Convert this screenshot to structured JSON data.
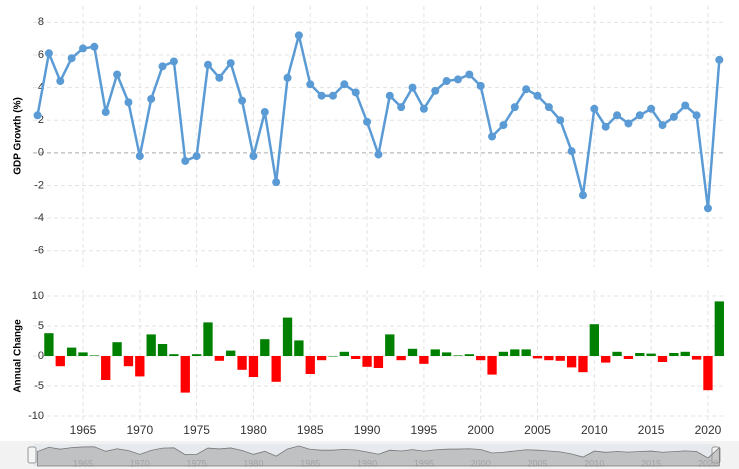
{
  "chart_data": [
    {
      "type": "line",
      "y_label": "GDP Growth (%)",
      "color": "#5b9bd5",
      "grid": true,
      "x": [
        1961,
        1962,
        1963,
        1964,
        1965,
        1966,
        1967,
        1968,
        1969,
        1970,
        1971,
        1972,
        1973,
        1974,
        1975,
        1976,
        1977,
        1978,
        1979,
        1980,
        1981,
        1982,
        1983,
        1984,
        1985,
        1986,
        1987,
        1988,
        1989,
        1990,
        1991,
        1992,
        1993,
        1994,
        1995,
        1996,
        1997,
        1998,
        1999,
        2000,
        2001,
        2002,
        2003,
        2004,
        2005,
        2006,
        2007,
        2008,
        2009,
        2010,
        2011,
        2012,
        2013,
        2014,
        2015,
        2016,
        2017,
        2018,
        2019,
        2020,
        2021
      ],
      "values": [
        2.3,
        6.1,
        4.4,
        5.8,
        6.4,
        6.5,
        2.5,
        4.8,
        3.1,
        -0.2,
        3.3,
        5.3,
        5.6,
        -0.5,
        -0.2,
        5.4,
        4.6,
        5.5,
        3.2,
        -0.2,
        2.5,
        -1.8,
        4.6,
        7.2,
        4.2,
        3.5,
        3.5,
        4.2,
        3.7,
        1.9,
        -0.1,
        3.5,
        2.8,
        4.0,
        2.7,
        3.8,
        4.4,
        4.5,
        4.8,
        4.1,
        1.0,
        1.7,
        2.8,
        3.9,
        3.5,
        2.8,
        2.0,
        0.1,
        -2.6,
        2.7,
        1.6,
        2.3,
        1.8,
        2.3,
        2.7,
        1.7,
        2.2,
        2.9,
        2.3,
        -3.4,
        5.7
      ],
      "xlim": [
        1960.6,
        2021.5
      ],
      "xticks": [
        1965,
        1970,
        1975,
        1980,
        1985,
        1990,
        1995,
        2000,
        2005,
        2010,
        2015,
        2020
      ],
      "ylim": [
        -7,
        9
      ],
      "yticks": [
        8,
        6,
        4,
        2,
        0,
        -2,
        -4,
        -6
      ]
    },
    {
      "type": "bar",
      "y_label": "Annual Change",
      "positive_color": "#008000",
      "negative_color": "#ff0000",
      "grid": true,
      "x": [
        1962,
        1963,
        1964,
        1965,
        1966,
        1967,
        1968,
        1969,
        1970,
        1971,
        1972,
        1973,
        1974,
        1975,
        1976,
        1977,
        1978,
        1979,
        1980,
        1981,
        1982,
        1983,
        1984,
        1985,
        1986,
        1987,
        1988,
        1989,
        1990,
        1991,
        1992,
        1993,
        1994,
        1995,
        1996,
        1997,
        1998,
        1999,
        2000,
        2001,
        2002,
        2003,
        2004,
        2005,
        2006,
        2007,
        2008,
        2009,
        2010,
        2011,
        2012,
        2013,
        2014,
        2015,
        2016,
        2017,
        2018,
        2019,
        2020,
        2021
      ],
      "values": [
        3.8,
        -1.7,
        1.4,
        0.6,
        0.1,
        -4.0,
        2.3,
        -1.7,
        -3.4,
        3.6,
        2.0,
        0.3,
        -6.1,
        0.3,
        5.6,
        -0.8,
        0.9,
        -2.3,
        -3.5,
        2.8,
        -4.3,
        6.4,
        2.6,
        -3.0,
        -0.7,
        0.0,
        0.7,
        -0.5,
        -1.8,
        -2.0,
        3.6,
        -0.7,
        1.2,
        -1.3,
        1.1,
        0.6,
        0.1,
        0.3,
        -0.7,
        -3.1,
        0.7,
        1.1,
        1.1,
        -0.4,
        -0.7,
        -0.8,
        -1.9,
        -2.7,
        5.3,
        -1.1,
        0.7,
        -0.5,
        0.5,
        0.4,
        -1.0,
        0.5,
        0.7,
        -0.6,
        -5.7,
        9.1
      ],
      "xlim": [
        1960.6,
        2021.5
      ],
      "xticks": [
        1965,
        1970,
        1975,
        1980,
        1985,
        1990,
        1995,
        2000,
        2005,
        2010,
        2015,
        2020
      ],
      "ylim": [
        -11,
        11
      ],
      "yticks": [
        10,
        5,
        0,
        -5,
        -10
      ]
    }
  ]
}
